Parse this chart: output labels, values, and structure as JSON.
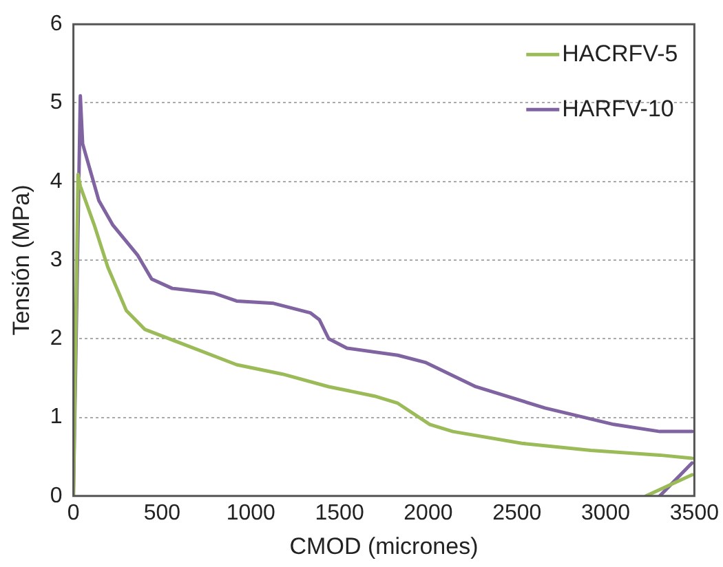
{
  "chart_data": {
    "type": "line",
    "xlabel": "CMOD (micrones)",
    "ylabel": "Tensión (MPa)",
    "xlim": [
      0,
      3500
    ],
    "xticks": [
      0,
      500,
      1000,
      1500,
      2000,
      2500,
      3000,
      3500
    ],
    "ylim": [
      0,
      6
    ],
    "yticks": [
      0,
      1,
      2,
      3,
      4,
      5,
      6
    ],
    "grid": "y",
    "legend": "top right",
    "marker": "none",
    "line_style": "solid",
    "series": [
      {
        "name": "HACRFV-5",
        "color": "#9bbb59",
        "x": [
          0,
          26,
          39,
          117,
          194,
          298,
          402,
          609,
          920,
          1179,
          1439,
          1698,
          1828,
          2009,
          2139,
          2527,
          2916,
          3305,
          3487,
          null,
          3227,
          3487
        ],
        "values": [
          0,
          4.09,
          3.94,
          3.45,
          2.91,
          2.36,
          2.12,
          1.94,
          1.67,
          1.55,
          1.39,
          1.27,
          1.18,
          0.91,
          0.82,
          0.67,
          0.58,
          0.52,
          0.48,
          null,
          0,
          0.27
        ]
      },
      {
        "name": "HARFV-10",
        "color": "#8064a2",
        "x": [
          0,
          39,
          52,
          143,
          221,
          363,
          441,
          557,
          791,
          920,
          1128,
          1335,
          1387,
          1439,
          1542,
          1828,
          1983,
          2268,
          2657,
          3046,
          3305,
          3487,
          null,
          3305,
          3487
        ],
        "values": [
          0,
          5.09,
          4.48,
          3.76,
          3.45,
          3.06,
          2.76,
          2.64,
          2.58,
          2.48,
          2.45,
          2.33,
          2.24,
          2.0,
          1.88,
          1.79,
          1.7,
          1.39,
          1.12,
          0.91,
          0.82,
          0.82,
          null,
          0,
          0.42
        ]
      }
    ]
  }
}
